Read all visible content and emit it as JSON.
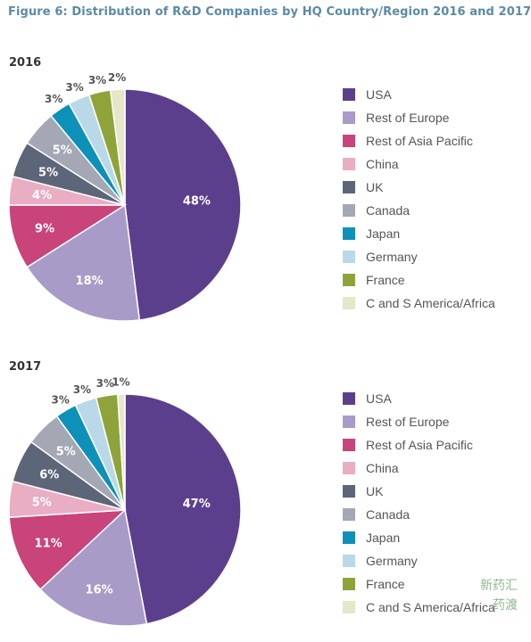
{
  "title": "Figure 6: Distribution of R&D Companies by HQ Country/Region 2016 and 2017",
  "colors": {
    "USA": "#5c3f8c",
    "Rest of Europe": "#a99bc8",
    "Rest of Asia Pacific": "#c8447a",
    "China": "#e9adc4",
    "UK": "#5d6578",
    "Canada": "#a4a7b4",
    "Japan": "#0e91b8",
    "Germany": "#b9d9e8",
    "France": "#8ea43a",
    "C and S America/Africa": "#e6e6c8"
  },
  "chart_data": [
    {
      "type": "pie",
      "title": "2016",
      "labels": [
        "USA",
        "Rest of Europe",
        "Rest of Asia Pacific",
        "China",
        "UK",
        "Canada",
        "Japan",
        "Germany",
        "France",
        "C and S America/Africa"
      ],
      "values": [
        48,
        18,
        9,
        4,
        5,
        5,
        3,
        3,
        3,
        2
      ],
      "value_labels": [
        "48%",
        "18%",
        "9%",
        "4%",
        "5%",
        "5%",
        "3%",
        "3%",
        "3%",
        "2%"
      ],
      "legend_position": "right"
    },
    {
      "type": "pie",
      "title": "2017",
      "labels": [
        "USA",
        "Rest of Europe",
        "Rest of Asia Pacific",
        "China",
        "UK",
        "Canada",
        "Japan",
        "Germany",
        "France",
        "C and S America/Africa"
      ],
      "values": [
        47,
        16,
        11,
        5,
        6,
        5,
        3,
        3,
        3,
        1
      ],
      "value_labels": [
        "47%",
        "16%",
        "11%",
        "5%",
        "6%",
        "5%",
        "3%",
        "3%",
        "3%",
        "1%"
      ],
      "legend_position": "right"
    }
  ],
  "watermark": {
    "line1": "新药汇",
    "line2": "药渡"
  }
}
